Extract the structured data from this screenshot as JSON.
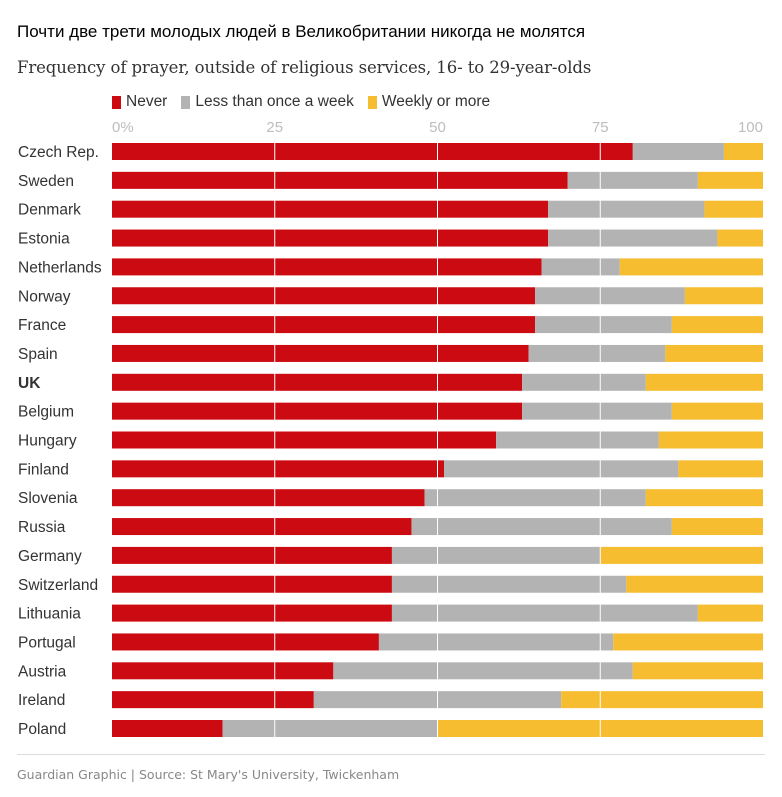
{
  "title": "Почти две трети молодых людей в Великобритании никогда не молятся",
  "subtitle": "Frequency of prayer, outside of religious services, 16- to 29-year-olds",
  "source": "Guardian Graphic | Source: St Mary's University, Twickenham",
  "colors": {
    "never": "#cc0a11",
    "less": "#b3b3b3",
    "weekly": "#f5bd2f",
    "grid": "#ffffff",
    "text": "#333333",
    "tick": "#bdbdbd"
  },
  "legend": [
    {
      "label": "Never",
      "color": "#cc0a11"
    },
    {
      "label": "Less than once a week",
      "color": "#b3b3b3"
    },
    {
      "label": "Weekly or more",
      "color": "#f5bd2f"
    }
  ],
  "chart_data": {
    "type": "bar",
    "orientation": "horizontal",
    "stacked": true,
    "xlim": [
      0,
      100
    ],
    "xticks": [
      0,
      25,
      50,
      75,
      100
    ],
    "xtick_labels": [
      "0%",
      "25",
      "50",
      "75",
      "100"
    ],
    "grid": true,
    "legend_position": "top-left",
    "highlight_category": "UK",
    "categories": [
      "Czech Rep.",
      "Sweden",
      "Denmark",
      "Estonia",
      "Netherlands",
      "Norway",
      "France",
      "Spain",
      "UK",
      "Belgium",
      "Hungary",
      "Finland",
      "Slovenia",
      "Russia",
      "Germany",
      "Switzerland",
      "Lithuania",
      "Portugal",
      "Austria",
      "Ireland",
      "Poland"
    ],
    "series": [
      {
        "name": "Never",
        "values": [
          80,
          70,
          67,
          67,
          66,
          65,
          65,
          64,
          63,
          63,
          59,
          51,
          48,
          46,
          43,
          43,
          43,
          41,
          34,
          31,
          17
        ]
      },
      {
        "name": "Less than once a week",
        "values": [
          14,
          20,
          24,
          26,
          12,
          23,
          21,
          21,
          19,
          23,
          25,
          36,
          34,
          40,
          32,
          36,
          47,
          36,
          46,
          38,
          33
        ]
      },
      {
        "name": "Weekly or more",
        "values": [
          6,
          10,
          9,
          7,
          22,
          12,
          14,
          15,
          18,
          14,
          16,
          13,
          18,
          14,
          25,
          21,
          10,
          23,
          20,
          31,
          50
        ]
      }
    ]
  }
}
